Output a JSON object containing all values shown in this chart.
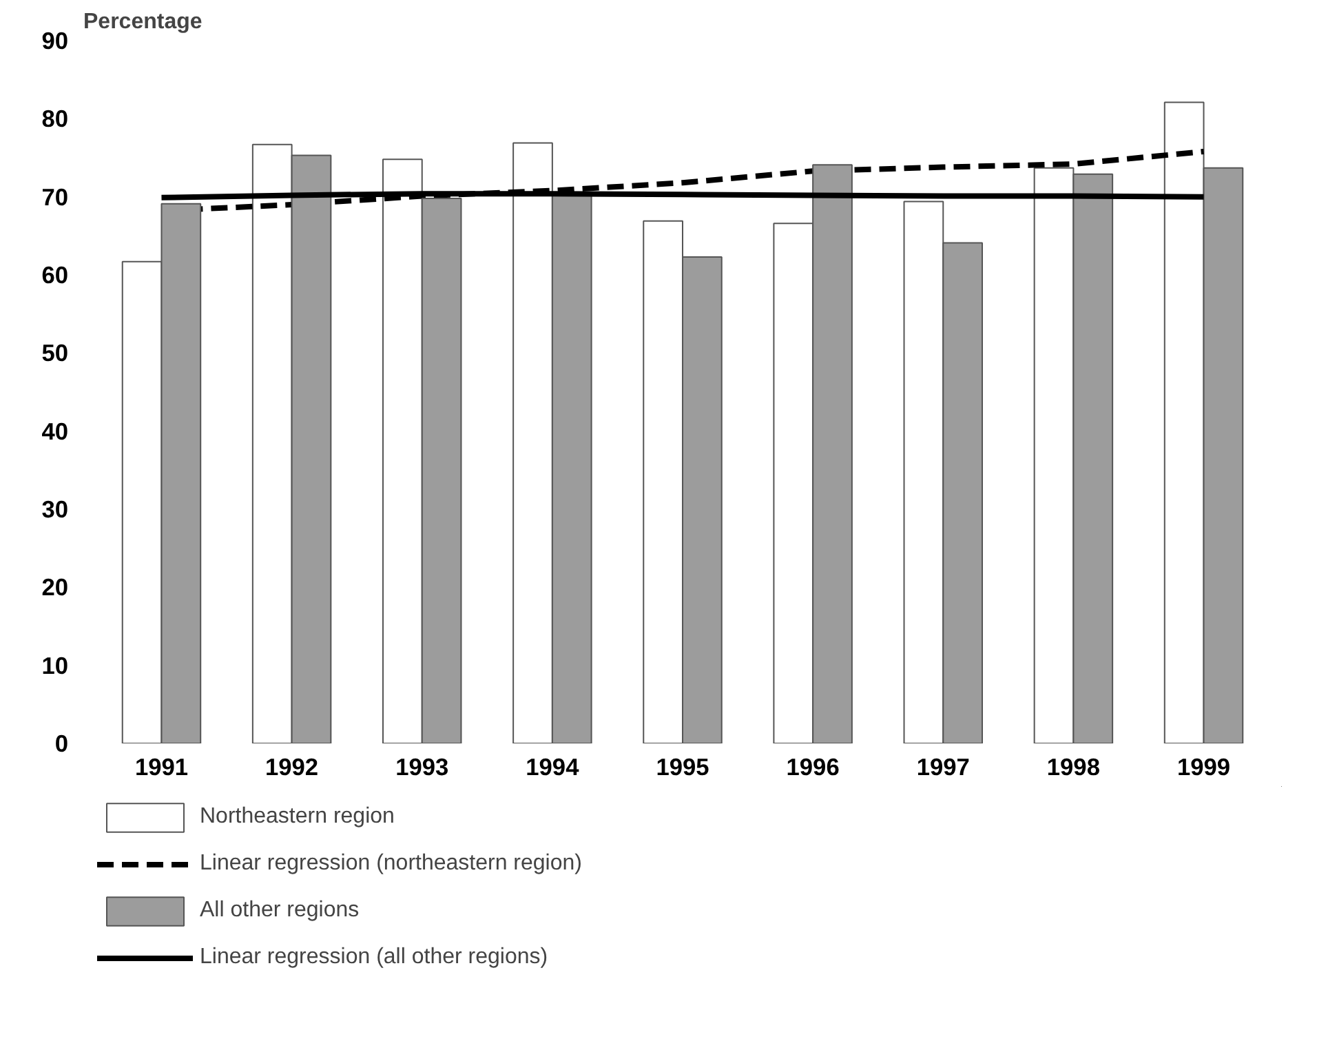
{
  "chart_data": {
    "type": "bar",
    "ylabel": "Percentage",
    "categories": [
      "1991",
      "1992",
      "1993",
      "1994",
      "1995",
      "1996",
      "1997",
      "1998",
      "1999"
    ],
    "ylim": [
      0,
      90
    ],
    "yticks": [
      0,
      10,
      20,
      30,
      40,
      50,
      60,
      70,
      80,
      90
    ],
    "grid": false,
    "legend": "bottom",
    "series": [
      {
        "name": "Northeastern region",
        "color": "#ffffff",
        "values": [
          61.7,
          76.7,
          74.8,
          76.9,
          66.9,
          66.6,
          69.4,
          73.7,
          82.1
        ]
      },
      {
        "name": "Linear regression (northeastern region)",
        "type": "line",
        "line_style": "dashed",
        "color": "#000000",
        "values": [
          68.2,
          69.0,
          70.1,
          70.8,
          71.8,
          73.3,
          73.8,
          74.2,
          75.8
        ]
      },
      {
        "name": "All other regions",
        "color": "#9c9c9c",
        "values": [
          69.1,
          75.3,
          69.8,
          70.2,
          62.3,
          74.1,
          64.1,
          72.9,
          73.7
        ]
      },
      {
        "name": "Linear regression (all other regions)",
        "type": "line",
        "line_style": "solid",
        "color": "#000000",
        "values": [
          69.9,
          70.2,
          70.4,
          70.4,
          70.3,
          70.2,
          70.1,
          70.1,
          70.0
        ]
      }
    ]
  }
}
